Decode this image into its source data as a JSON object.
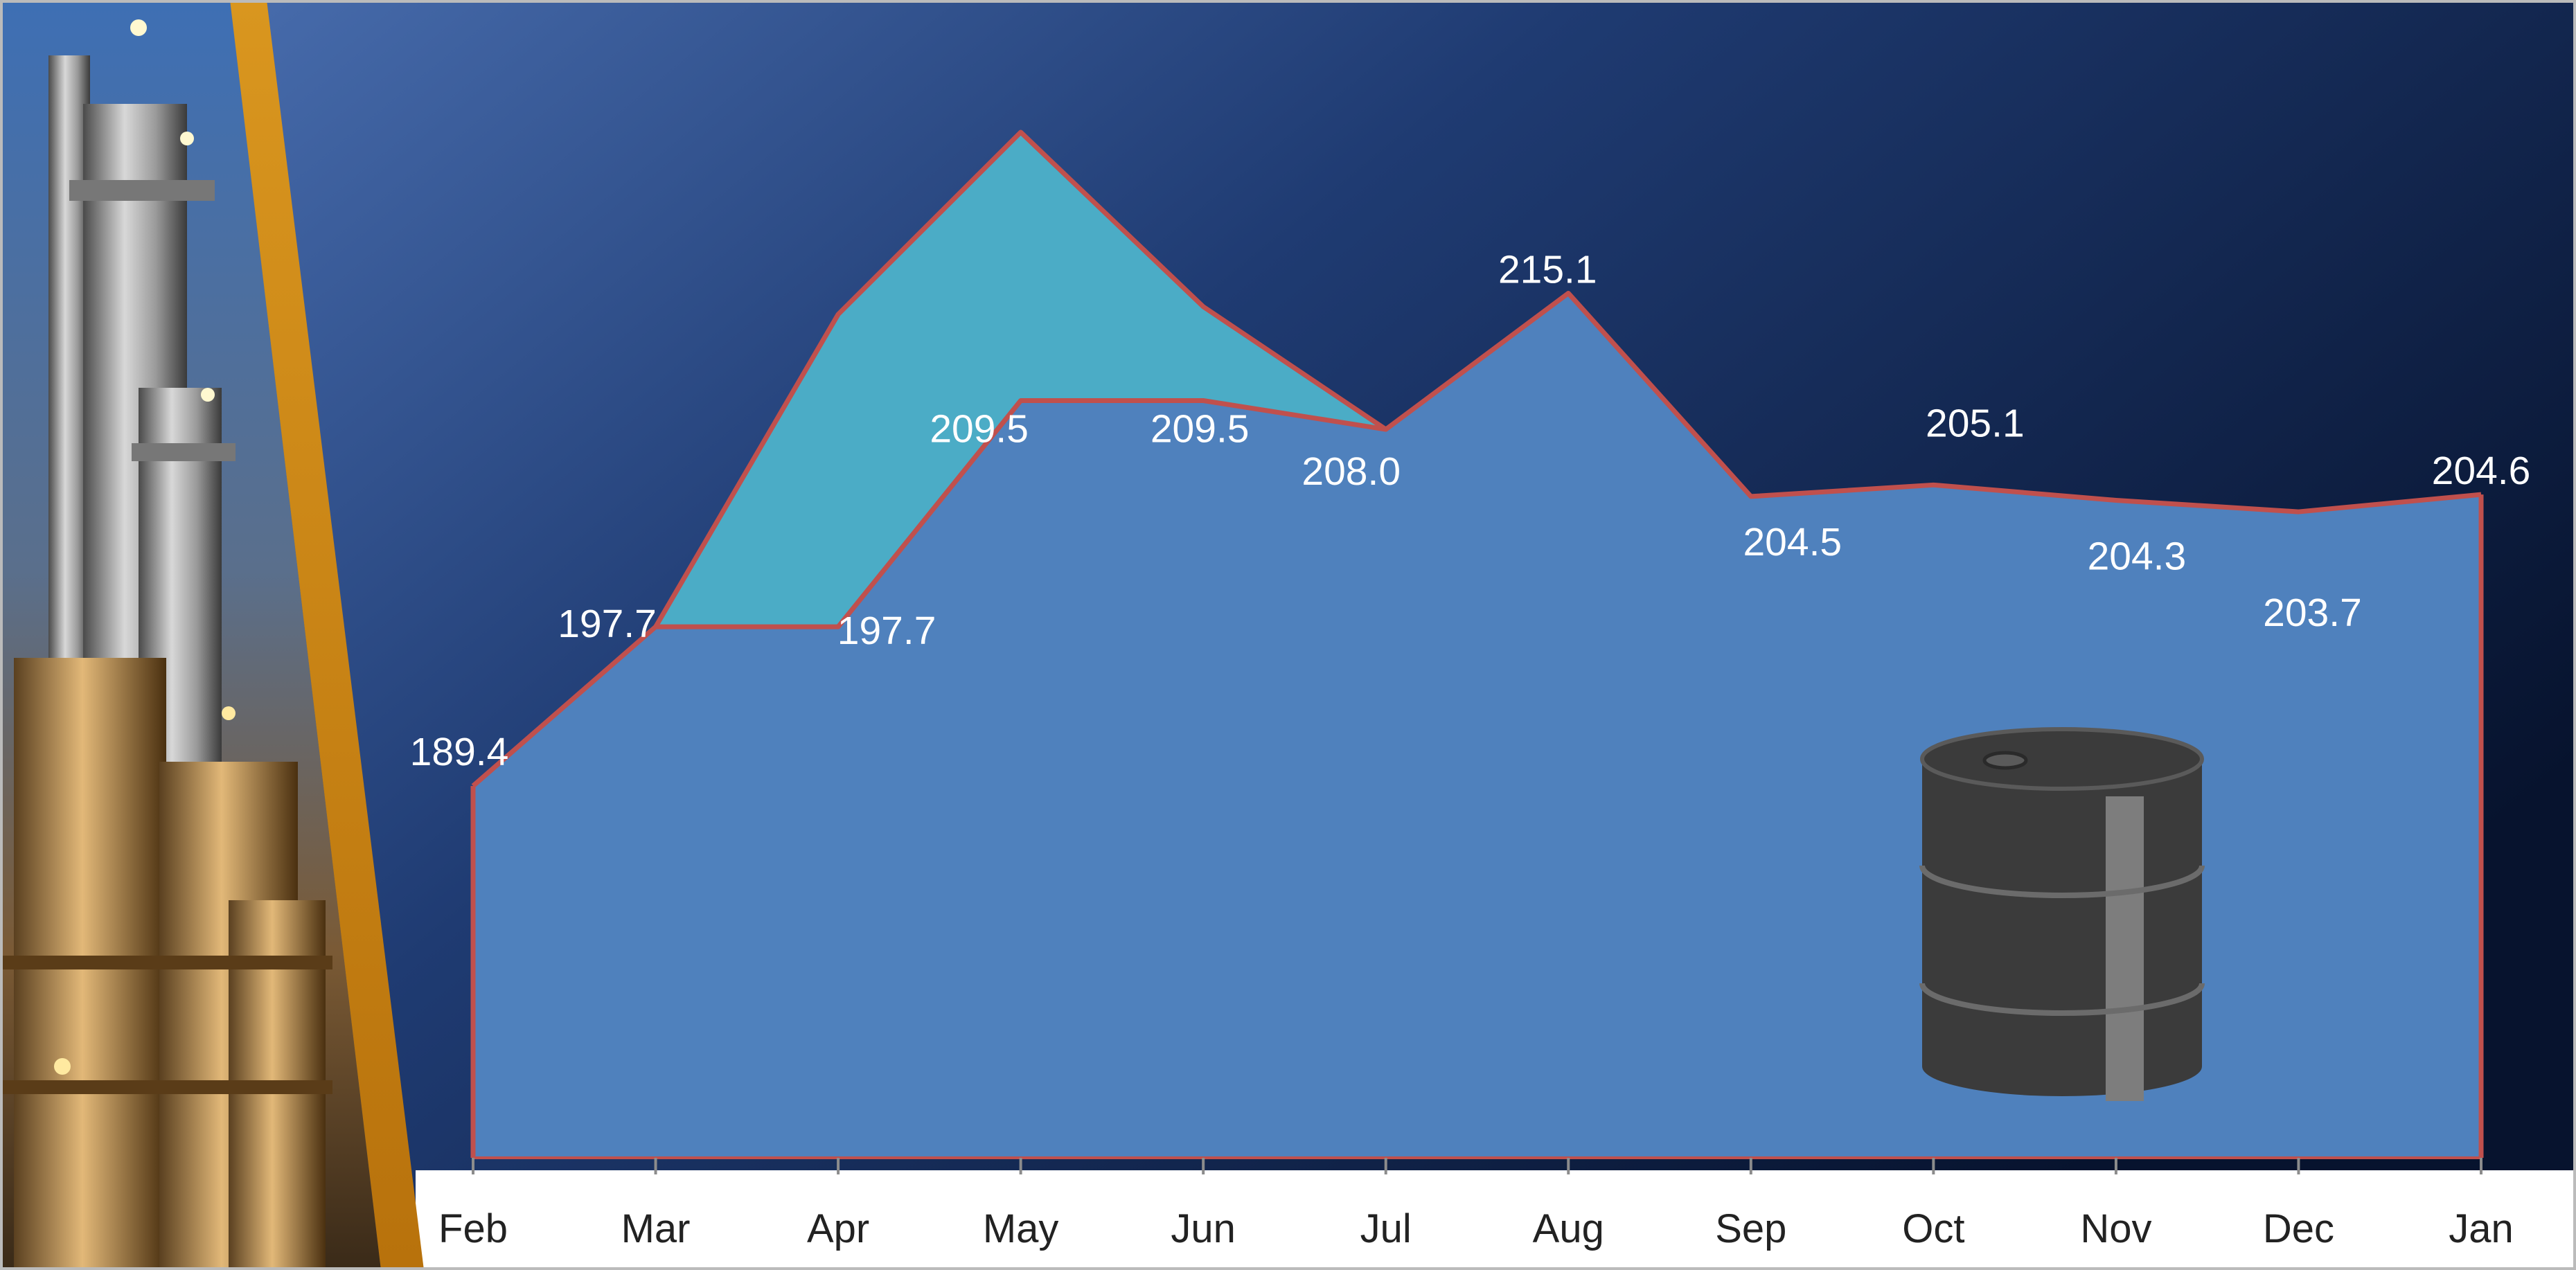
{
  "chart_data": {
    "type": "area",
    "categories": [
      "Feb",
      "Mar",
      "Apr",
      "May",
      "Jun",
      "Jul",
      "Aug",
      "Sep",
      "Oct",
      "Nov",
      "Dec",
      "Jan"
    ],
    "series": [
      {
        "color": "#4bacc6",
        "values": [
          null,
          197.7,
          214.0,
          223.5,
          214.4,
          208.0,
          null,
          null,
          null,
          null,
          null,
          null
        ]
      },
      {
        "color": "#4f81bd",
        "values": [
          189.4,
          197.7,
          197.7,
          209.5,
          209.5,
          208.0,
          215.1,
          204.5,
          205.1,
          204.3,
          203.7,
          204.6
        ],
        "value_labels": [
          "189.4",
          "197.7",
          "197.7",
          "209.5",
          "209.5",
          "208.0",
          "215.1",
          "204.5",
          "205.1",
          "204.3",
          "203.7",
          "204.6"
        ]
      }
    ],
    "line_color": "#c0504d",
    "ylim": [
      170,
      230
    ]
  }
}
